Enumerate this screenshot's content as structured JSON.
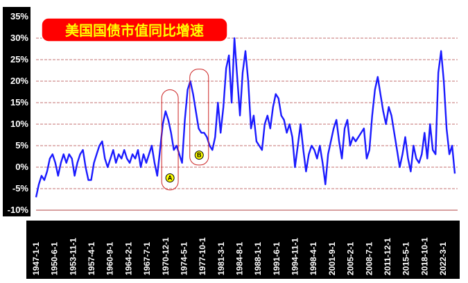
{
  "chart_data": {
    "type": "line",
    "title": "美国国债市值同比增速",
    "xlabel": "",
    "ylabel": "",
    "ylim": [
      -0.1,
      0.35
    ],
    "y_ticks": [
      "35%",
      "30%",
      "25%",
      "20%",
      "15%",
      "10%",
      "5%",
      "0%",
      "-5%",
      "-10%"
    ],
    "y_tick_values": [
      0.35,
      0.3,
      0.25,
      0.2,
      0.15,
      0.1,
      0.05,
      0.0,
      -0.05,
      -0.1
    ],
    "x_ticks": [
      "1947-1-1",
      "1950-6-1",
      "1953-11-1",
      "1957-4-1",
      "1960-9-1",
      "1964-2-1",
      "1967-7-1",
      "1970-12-1",
      "1974-5-1",
      "1977-10-1",
      "1981-3-1",
      "1984-8-1",
      "1988-1-1",
      "1991-6-1",
      "1994-11-1",
      "1998-4-1",
      "2001-9-1",
      "2005-2-1",
      "2008-7-1",
      "2011-12-1",
      "2015-5-1",
      "2018-10-1",
      "2022-3-1"
    ],
    "x_range": [
      1947.0,
      2023.5
    ],
    "grid": true,
    "colors": {
      "line": "#1a1aff",
      "grid": "#b04040",
      "axis_panel": "#000000",
      "title_box": "#ff0000",
      "title_text": "#ffff00",
      "annotation": "#cc2222",
      "marker_fill": "#ffff00"
    },
    "annotations": [
      {
        "label": "A",
        "x_range": [
          1969.8,
          1972.8
        ],
        "y_range": [
          -0.053,
          0.18
        ],
        "label_x": 1971.3,
        "label_y": -0.025
      },
      {
        "label": "B",
        "x_range": [
          1974.9,
          1978.3
        ],
        "y_range": [
          0.005,
          0.228
        ],
        "label_x": 1976.6,
        "label_y": 0.028
      }
    ],
    "series": [
      {
        "x": [
          1947.0,
          1947.5,
          1948.0,
          1948.5,
          1949.0,
          1949.5,
          1950.0,
          1950.5,
          1951.0,
          1951.5,
          1952.0,
          1952.5,
          1953.0,
          1953.5,
          1954.0,
          1954.5,
          1955.0,
          1955.5,
          1956.0,
          1956.5,
          1957.0,
          1957.5,
          1958.0,
          1958.5,
          1959.0,
          1959.5,
          1960.0,
          1960.5,
          1961.0,
          1961.5,
          1962.0,
          1962.5,
          1963.0,
          1963.5,
          1964.0,
          1964.5,
          1965.0,
          1965.5,
          1966.0,
          1966.5,
          1967.0,
          1967.5,
          1968.0,
          1968.5,
          1969.0,
          1969.5,
          1970.0,
          1970.5,
          1971.0,
          1971.5,
          1972.0,
          1972.5,
          1973.0,
          1973.5,
          1974.0,
          1974.5,
          1975.0,
          1975.5,
          1976.0,
          1976.5,
          1977.0,
          1977.5,
          1978.0,
          1978.5,
          1979.0,
          1979.5,
          1980.0,
          1980.5,
          1981.0,
          1981.5,
          1982.0,
          1982.5,
          1983.0,
          1983.5,
          1984.0,
          1984.5,
          1985.0,
          1985.5,
          1986.0,
          1986.5,
          1987.0,
          1987.5,
          1988.0,
          1988.5,
          1989.0,
          1989.5,
          1990.0,
          1990.5,
          1991.0,
          1991.5,
          1992.0,
          1992.5,
          1993.0,
          1993.5,
          1994.0,
          1994.5,
          1995.0,
          1995.5,
          1996.0,
          1996.5,
          1997.0,
          1997.5,
          1998.0,
          1998.5,
          1999.0,
          1999.5,
          2000.0,
          2000.5,
          2001.0,
          2001.5,
          2002.0,
          2002.5,
          2003.0,
          2003.5,
          2004.0,
          2004.5,
          2005.0,
          2005.5,
          2006.0,
          2006.5,
          2007.0,
          2007.5,
          2008.0,
          2008.5,
          2009.0,
          2009.5,
          2010.0,
          2010.5,
          2011.0,
          2011.5,
          2012.0,
          2012.5,
          2013.0,
          2013.5,
          2014.0,
          2014.5,
          2015.0,
          2015.5,
          2016.0,
          2016.5,
          2017.0,
          2017.5,
          2018.0,
          2018.5,
          2019.0,
          2019.5,
          2020.0,
          2020.5,
          2021.0,
          2021.5,
          2022.0,
          2022.5,
          2023.0
        ],
        "values": [
          -0.07,
          -0.04,
          -0.02,
          -0.03,
          -0.01,
          0.02,
          0.03,
          0.01,
          -0.02,
          0.01,
          0.03,
          0.01,
          0.03,
          0.02,
          -0.02,
          0.01,
          0.03,
          0.04,
          0.0,
          -0.03,
          -0.03,
          0.01,
          0.03,
          0.05,
          0.06,
          0.02,
          0.0,
          0.02,
          0.04,
          0.01,
          0.03,
          0.02,
          0.04,
          0.02,
          0.01,
          0.03,
          0.02,
          0.04,
          0.0,
          0.03,
          0.01,
          0.03,
          0.05,
          0.01,
          -0.02,
          0.04,
          0.1,
          0.13,
          0.11,
          0.08,
          0.04,
          0.05,
          0.03,
          0.01,
          0.11,
          0.18,
          0.2,
          0.17,
          0.13,
          0.09,
          0.08,
          0.08,
          0.07,
          0.05,
          0.04,
          0.07,
          0.15,
          0.08,
          0.14,
          0.23,
          0.26,
          0.15,
          0.3,
          0.21,
          0.12,
          0.22,
          0.27,
          0.2,
          0.09,
          0.12,
          0.06,
          0.05,
          0.04,
          0.1,
          0.12,
          0.09,
          0.14,
          0.17,
          0.16,
          0.12,
          0.11,
          0.08,
          0.1,
          0.07,
          0.0,
          0.05,
          0.1,
          0.04,
          -0.01,
          0.03,
          0.05,
          0.04,
          0.02,
          0.05,
          0.01,
          -0.04,
          0.03,
          0.06,
          0.09,
          0.11,
          0.06,
          0.02,
          0.09,
          0.11,
          0.05,
          0.07,
          0.06,
          0.07,
          0.08,
          0.09,
          0.02,
          0.04,
          0.12,
          0.18,
          0.21,
          0.17,
          0.13,
          0.1,
          0.14,
          0.12,
          0.08,
          0.04,
          0.0,
          0.03,
          0.07,
          0.02,
          -0.01,
          0.05,
          0.02,
          0.01,
          0.03,
          0.08,
          0.02,
          0.1,
          0.04,
          0.03,
          0.22,
          0.27,
          0.2,
          0.09,
          0.03,
          0.05,
          -0.015
        ]
      }
    ]
  }
}
